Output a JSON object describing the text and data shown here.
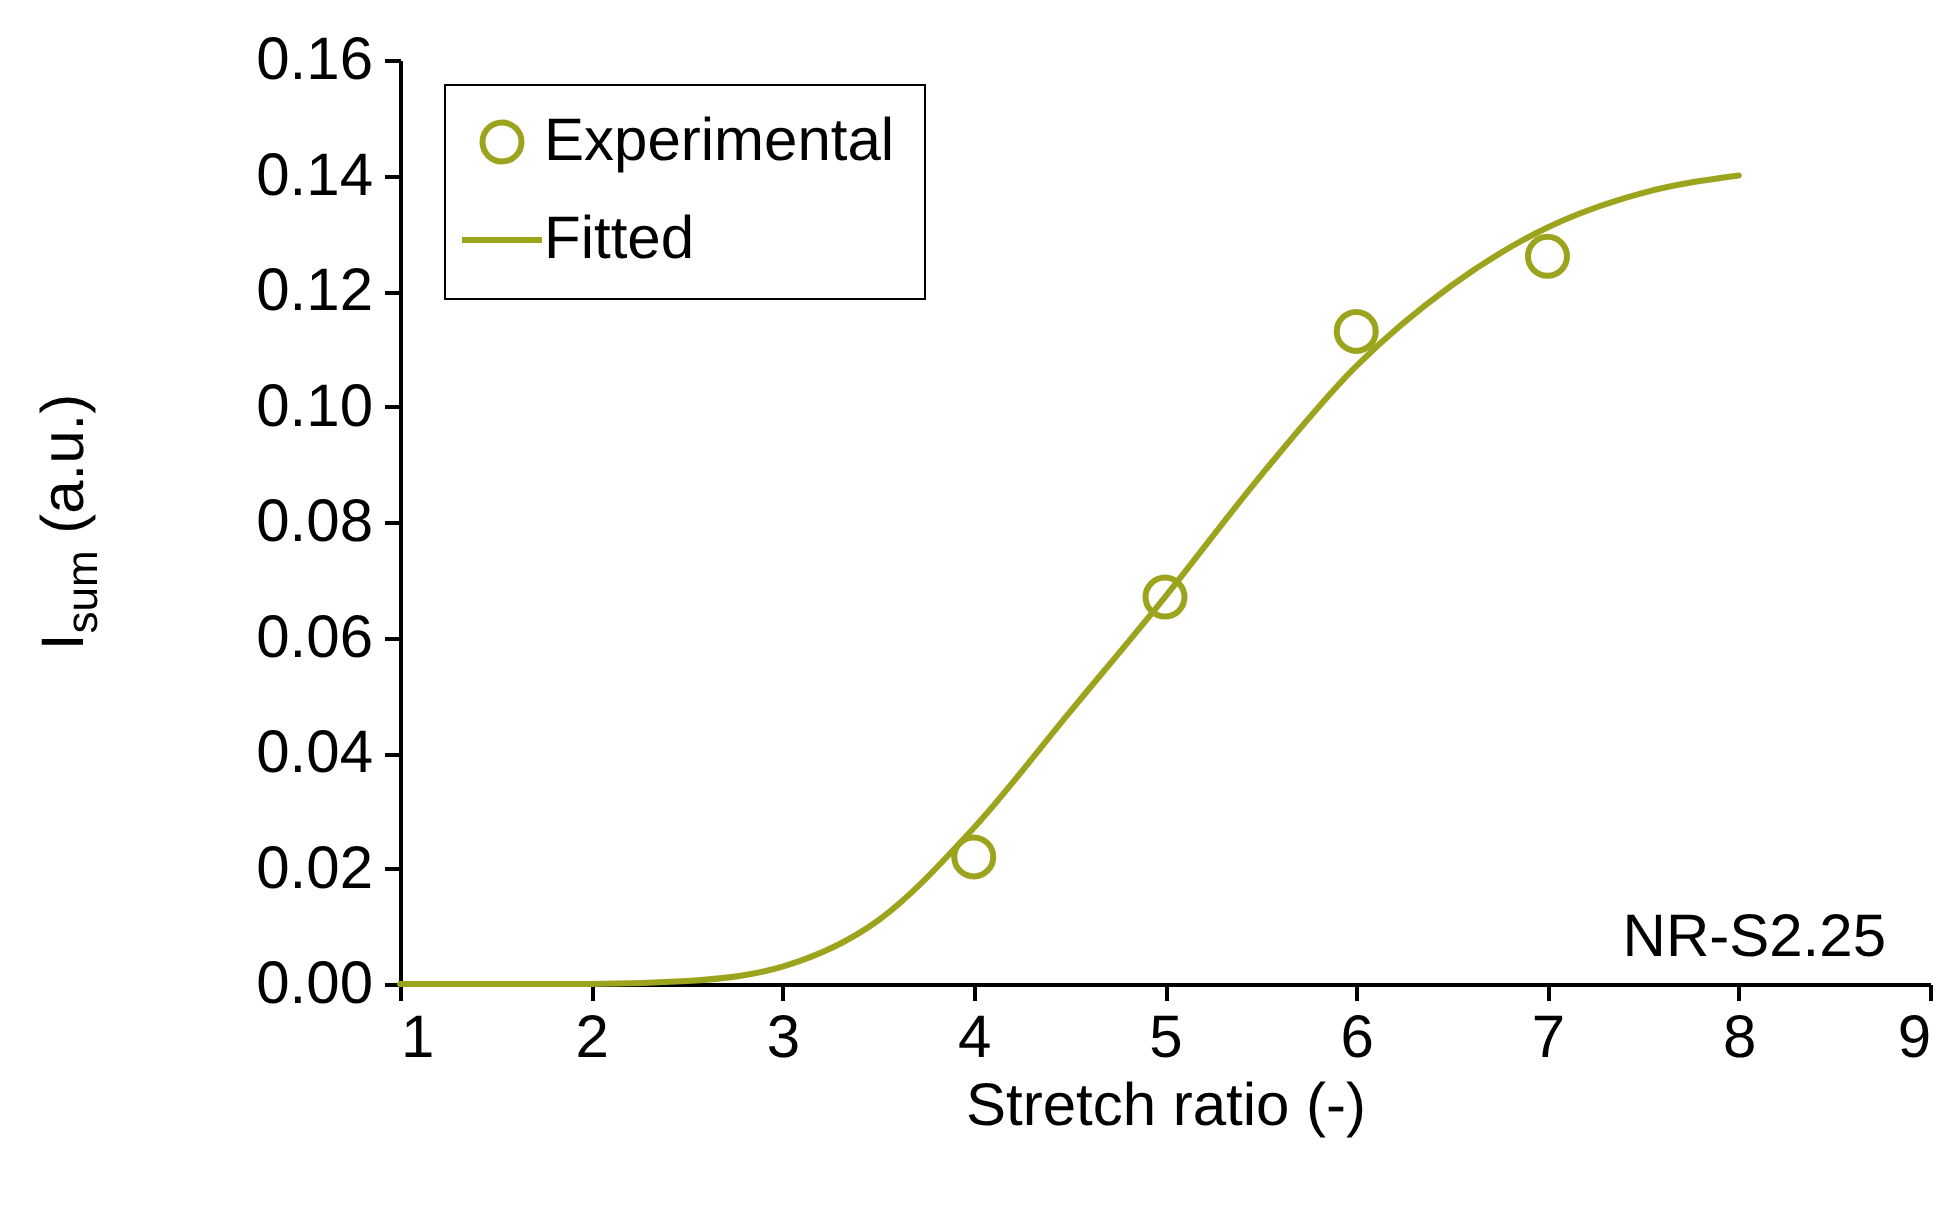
{
  "chart_data": {
    "type": "scatter",
    "xlabel": "Stretch ratio (-)",
    "ylabel": "I$_{sum}$ (a.u.)",
    "xlim": [
      1,
      9
    ],
    "ylim": [
      0,
      0.16
    ],
    "xticks": [
      1,
      2,
      3,
      4,
      5,
      6,
      7,
      8,
      9
    ],
    "yticks": [
      {
        "value": 0,
        "label": "0.00"
      },
      {
        "value": 0.02,
        "label": "0.02"
      },
      {
        "value": 0.04,
        "label": "0.04"
      },
      {
        "value": 0.06,
        "label": "0.06"
      },
      {
        "value": 0.08,
        "label": "0.08"
      },
      {
        "value": 0.1,
        "label": "0.10"
      },
      {
        "value": 0.12,
        "label": "0.12"
      },
      {
        "value": 0.14,
        "label": "0.14"
      },
      {
        "value": 0.16,
        "label": "0.16"
      }
    ],
    "grid": false,
    "legend": "top left",
    "annotations": [
      "NR-S2.25"
    ],
    "series": [
      {
        "name": "Experimental",
        "marker": "circle",
        "color": "#9ca31d",
        "x": [
          4,
          5,
          6,
          7
        ],
        "values": [
          0.022,
          0.067,
          0.113,
          0.126
        ]
      },
      {
        "name": "Fitted",
        "type": "line",
        "marker": "none",
        "line_style": "solid",
        "color": "#9ca31d",
        "x": [
          1,
          1.5,
          2,
          2.5,
          3,
          3.5,
          4,
          4.5,
          5,
          5.5,
          6,
          6.5,
          7,
          7.5,
          8
        ],
        "values": [
          0,
          0,
          0,
          0.0005,
          0.003,
          0.011,
          0.027,
          0.047,
          0.067,
          0.088,
          0.107,
          0.121,
          0.131,
          0.137,
          0.14
        ]
      }
    ]
  }
}
